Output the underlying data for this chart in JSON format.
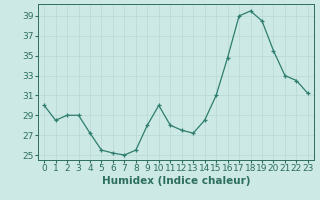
{
  "x": [
    0,
    1,
    2,
    3,
    4,
    5,
    6,
    7,
    8,
    9,
    10,
    11,
    12,
    13,
    14,
    15,
    16,
    17,
    18,
    19,
    20,
    21,
    22,
    23
  ],
  "y": [
    30.0,
    28.5,
    29.0,
    29.0,
    27.2,
    25.5,
    25.2,
    25.0,
    25.5,
    28.0,
    30.0,
    28.0,
    27.5,
    27.2,
    28.5,
    31.0,
    34.8,
    39.0,
    39.5,
    38.5,
    35.5,
    33.0,
    32.5,
    31.2
  ],
  "line_color": "#2e7d6e",
  "marker": "+",
  "bg_color": "#cce9e5",
  "grid_color": "#b8d8d4",
  "xlabel": "Humidex (Indice chaleur)",
  "ylim": [
    24.5,
    40.2
  ],
  "yticks": [
    25,
    27,
    29,
    31,
    33,
    35,
    37,
    39
  ],
  "xticks": [
    0,
    1,
    2,
    3,
    4,
    5,
    6,
    7,
    8,
    9,
    10,
    11,
    12,
    13,
    14,
    15,
    16,
    17,
    18,
    19,
    20,
    21,
    22,
    23
  ],
  "font_color": "#2e6e5e",
  "tick_fontsize": 6.5,
  "label_fontsize": 7.5
}
